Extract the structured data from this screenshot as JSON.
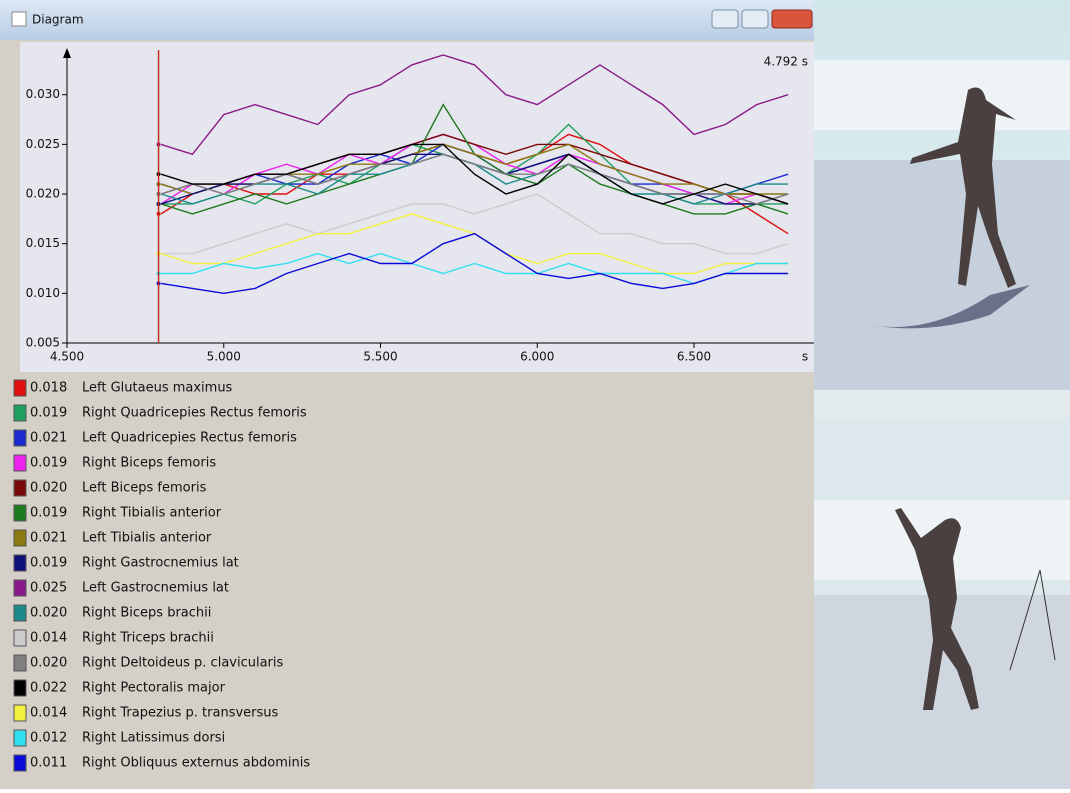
{
  "window_title": "Diagram",
  "chart_data": {
    "type": "line",
    "cursor": {
      "value": 4.792,
      "label": "4.792 s"
    },
    "x_unit": "s",
    "xlim": [
      4.5,
      6.87
    ],
    "xticks": [
      {
        "value": 4.5,
        "label": "4.500"
      },
      {
        "value": 5,
        "label": "5.000"
      },
      {
        "value": 5.5,
        "label": "5.500"
      },
      {
        "value": 6,
        "label": "6.000"
      },
      {
        "value": 6.5,
        "label": "6.500"
      }
    ],
    "ylim": [
      0.005,
      0.0345
    ],
    "yticks": [
      0.005,
      {
        "value": 0.01,
        "label": "0.010"
      },
      0.015,
      {
        "value": 0.02,
        "label": "0.020"
      },
      0.025,
      {
        "value": 0.03,
        "label": "0.030"
      }
    ],
    "x": [
      4.8,
      4.9,
      5.0,
      5.1,
      5.2,
      5.3,
      5.4,
      5.5,
      5.6,
      5.7,
      5.8,
      5.9,
      6.0,
      6.1,
      6.2,
      6.3,
      6.4,
      6.5,
      6.6,
      6.7,
      6.8
    ],
    "series": [
      {
        "name": "Left Glutaeus maximus",
        "color": "#e01010",
        "cursor_value": 0.018,
        "values": [
          0.018,
          0.02,
          0.021,
          0.02,
          0.02,
          0.022,
          0.022,
          0.023,
          0.024,
          0.025,
          0.024,
          0.023,
          0.024,
          0.026,
          0.025,
          0.023,
          0.022,
          0.021,
          0.02,
          0.018,
          0.016
        ]
      },
      {
        "name": "Right Quadricepies Rectus femoris",
        "color": "#20a060",
        "cursor_value": 0.019,
        "values": [
          0.019,
          0.019,
          0.02,
          0.019,
          0.021,
          0.022,
          0.021,
          0.023,
          0.025,
          0.024,
          0.023,
          0.022,
          0.024,
          0.027,
          0.024,
          0.021,
          0.02,
          0.019,
          0.019,
          0.019,
          0.019
        ]
      },
      {
        "name": "Left Quadricepies Rectus femoris",
        "color": "#1a2ad0",
        "cursor_value": 0.021,
        "values": [
          0.021,
          0.02,
          0.021,
          0.022,
          0.021,
          0.021,
          0.023,
          0.024,
          0.023,
          0.025,
          0.024,
          0.022,
          0.023,
          0.024,
          0.022,
          0.021,
          0.021,
          0.02,
          0.02,
          0.021,
          0.022
        ]
      },
      {
        "name": "Right Biceps femoris",
        "color": "#ee22ee",
        "cursor_value": 0.019,
        "values": [
          0.019,
          0.021,
          0.02,
          0.022,
          0.023,
          0.022,
          0.024,
          0.023,
          0.025,
          0.026,
          0.025,
          0.023,
          0.022,
          0.024,
          0.023,
          0.022,
          0.021,
          0.02,
          0.019,
          0.02,
          0.019
        ]
      },
      {
        "name": "Left Biceps femoris",
        "color": "#7a0a0a",
        "cursor_value": {
          "value": 0.02,
          "label": "0.020"
        },
        "values": [
          0.02,
          0.021,
          0.021,
          0.022,
          0.022,
          0.023,
          0.024,
          0.024,
          0.025,
          0.026,
          0.025,
          0.024,
          0.025,
          0.025,
          0.024,
          0.023,
          0.022,
          0.021,
          0.02,
          0.02,
          0.019
        ]
      },
      {
        "name": "Right Tibialis anterior",
        "color": "#1e7a1e",
        "cursor_value": 0.019,
        "values": [
          0.019,
          0.018,
          0.019,
          0.02,
          0.019,
          0.02,
          0.021,
          0.022,
          0.023,
          0.029,
          0.024,
          0.022,
          0.021,
          0.023,
          0.021,
          0.02,
          0.019,
          0.018,
          0.018,
          0.019,
          0.018
        ]
      },
      {
        "name": "Left Tibialis anterior",
        "color": "#8a7a10",
        "cursor_value": 0.021,
        "values": [
          0.021,
          0.02,
          0.021,
          0.021,
          0.022,
          0.022,
          0.023,
          0.023,
          0.024,
          0.025,
          0.024,
          0.023,
          0.024,
          0.025,
          0.023,
          0.022,
          0.021,
          0.021,
          0.02,
          0.02,
          0.02
        ]
      },
      {
        "name": "Right Gastrocnemius lat",
        "color": "#10107a",
        "cursor_value": 0.019,
        "values": [
          0.019,
          0.02,
          0.021,
          0.021,
          0.022,
          0.021,
          0.022,
          0.023,
          0.024,
          0.024,
          0.023,
          0.022,
          0.023,
          0.024,
          0.022,
          0.021,
          0.02,
          0.02,
          0.019,
          0.019,
          0.02
        ]
      },
      {
        "name": "Left Gastrocnemius lat",
        "color": "#8a1a8a",
        "cursor_value": 0.025,
        "values": [
          0.025,
          0.024,
          0.028,
          0.029,
          0.028,
          0.027,
          0.03,
          0.031,
          0.033,
          0.034,
          0.033,
          0.03,
          0.029,
          0.031,
          0.033,
          0.031,
          0.029,
          0.026,
          0.027,
          0.029,
          0.03
        ]
      },
      {
        "name": "Right Biceps brachii",
        "color": "#1a8a8a",
        "cursor_value": {
          "value": 0.02,
          "label": "0.020"
        },
        "values": [
          0.02,
          0.019,
          0.02,
          0.021,
          0.021,
          0.02,
          0.022,
          0.022,
          0.023,
          0.024,
          0.023,
          0.021,
          0.022,
          0.023,
          0.022,
          0.02,
          0.02,
          0.019,
          0.02,
          0.021,
          0.021
        ]
      },
      {
        "name": "Right Triceps brachii",
        "color": "#cccccc",
        "cursor_value": 0.014,
        "values": [
          0.014,
          0.014,
          0.015,
          0.016,
          0.017,
          0.016,
          0.017,
          0.018,
          0.019,
          0.019,
          0.018,
          0.019,
          0.02,
          0.018,
          0.016,
          0.016,
          0.015,
          0.015,
          0.014,
          0.014,
          0.015
        ]
      },
      {
        "name": "Right Deltoideus p. clavicularis",
        "color": "#808080",
        "cursor_value": {
          "value": 0.02,
          "label": "0.020"
        },
        "values": [
          0.02,
          0.021,
          0.02,
          0.021,
          0.022,
          0.021,
          0.022,
          0.023,
          0.023,
          0.024,
          0.023,
          0.022,
          0.022,
          0.023,
          0.022,
          0.021,
          0.02,
          0.02,
          0.02,
          0.019,
          0.02
        ]
      },
      {
        "name": "Right Pectoralis major",
        "color": "#000000",
        "cursor_value": 0.022,
        "values": [
          0.022,
          0.021,
          0.021,
          0.022,
          0.022,
          0.023,
          0.024,
          0.024,
          0.025,
          0.025,
          0.022,
          0.02,
          0.021,
          0.024,
          0.022,
          0.02,
          0.019,
          0.02,
          0.021,
          0.02,
          0.019
        ]
      },
      {
        "name": "Right Trapezius p. transversus",
        "color": "#f4f040",
        "cursor_value": 0.014,
        "values": [
          0.014,
          0.013,
          0.013,
          0.014,
          0.015,
          0.016,
          0.016,
          0.017,
          0.018,
          0.017,
          0.016,
          0.014,
          0.013,
          0.014,
          0.014,
          0.013,
          0.012,
          0.012,
          0.013,
          0.013,
          0.013
        ]
      },
      {
        "name": "Right Latissimus dorsi",
        "color": "#30e0f0",
        "cursor_value": 0.012,
        "values": [
          0.012,
          0.012,
          0.013,
          0.0125,
          0.013,
          0.014,
          0.013,
          0.014,
          0.013,
          0.012,
          0.013,
          0.012,
          0.012,
          0.013,
          0.012,
          0.012,
          0.012,
          0.011,
          0.012,
          0.013,
          0.013
        ]
      },
      {
        "name": "Right Obliquus externus abdominis",
        "color": "#0a0ad8",
        "cursor_value": 0.011,
        "values": [
          0.011,
          0.0105,
          0.01,
          0.0105,
          0.012,
          0.013,
          0.014,
          0.013,
          0.013,
          0.015,
          0.016,
          0.014,
          0.012,
          0.0115,
          0.012,
          0.011,
          0.0105,
          0.011,
          0.012,
          0.012,
          0.012
        ]
      }
    ]
  }
}
